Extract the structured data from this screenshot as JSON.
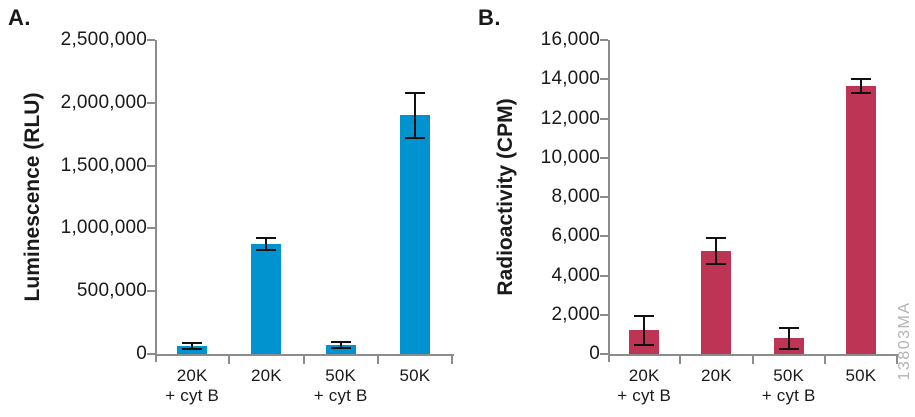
{
  "figure": {
    "panel_letters": [
      "A.",
      "B."
    ],
    "watermark": "13803MA"
  },
  "colors": {
    "panel_a_bar": "#0093d0",
    "panel_b_bar": "#be3455",
    "axis": "#8c8c8c",
    "text": "#1a1a1a",
    "error_bar": "#111111",
    "watermark": "#b3b3b3",
    "background": "#ffffff"
  },
  "chart_data": [
    {
      "type": "bar",
      "panel": "A",
      "title": "",
      "xlabel": "",
      "ylabel": "Luminescence (RLU)",
      "categories": [
        "20K\n+ cyt B",
        "20K",
        "50K\n+ cyt B",
        "50K"
      ],
      "values": [
        65000,
        875000,
        70000,
        1900000
      ],
      "errors": [
        25000,
        45000,
        25000,
        180000
      ],
      "ylim": [
        0,
        2500000
      ],
      "ytick_step": 500000,
      "ytick_labels": [
        "0",
        "500,000",
        "1,000,000",
        "1,500,000",
        "2,000,000",
        "2,500,000"
      ],
      "grid": false,
      "legend": null,
      "bar_color": "#0093d0"
    },
    {
      "type": "bar",
      "panel": "B",
      "title": "",
      "xlabel": "",
      "ylabel": "Radioactivity (CPM)",
      "categories": [
        "20K\n+ cyt B",
        "20K",
        "50K\n+ cyt B",
        "50K"
      ],
      "values": [
        1200,
        5250,
        800,
        13650
      ],
      "errors": [
        750,
        650,
        550,
        350
      ],
      "ylim": [
        0,
        16000
      ],
      "ytick_step": 2000,
      "ytick_labels": [
        "0",
        "2,000",
        "4,000",
        "6,000",
        "8,000",
        "10,000",
        "12,000",
        "14,000",
        "16,000"
      ],
      "grid": false,
      "legend": null,
      "bar_color": "#be3455"
    }
  ]
}
